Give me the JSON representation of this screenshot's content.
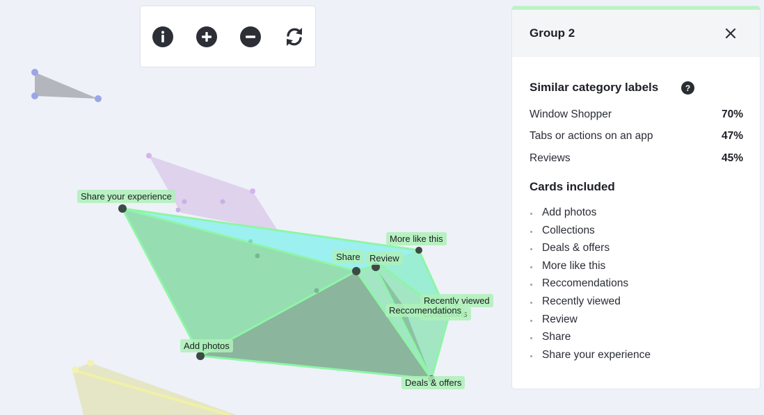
{
  "toolbar": {
    "buttons": [
      {
        "icon": "info-icon",
        "name": "info-button"
      },
      {
        "icon": "plus-icon",
        "name": "zoom-in-button"
      },
      {
        "icon": "minus-icon",
        "name": "zoom-out-button"
      },
      {
        "icon": "refresh-icon",
        "name": "reset-view-button"
      }
    ]
  },
  "panel": {
    "title": "Group 2",
    "accent_color": "#b7f5c1",
    "similar_title": "Similar category labels",
    "similar": [
      {
        "label": "Window Shopper",
        "percent": "70%"
      },
      {
        "label": "Tabs or actions on an app",
        "percent": "47%"
      },
      {
        "label": "Reviews",
        "percent": "45%"
      }
    ],
    "cards_title": "Cards included",
    "cards": [
      "Add photos",
      "Collections",
      "Deals & offers",
      "More like this",
      "Reccomendations",
      "Recently viewed",
      "Review",
      "Share",
      "Share your experience"
    ]
  },
  "scene": {
    "point_labels": {
      "share_experience": "Share your experience",
      "more_like_this": "More like this",
      "share": "Share",
      "review": "Review",
      "recently_viewed": "Recently viewed",
      "reccomendations": "Reccomendations",
      "collections": "Collections",
      "add_photos": "Add photos",
      "deals_offers": "Deals & offers"
    },
    "colors": {
      "group2_fill": "#7fdca0",
      "group2_edge": "#8ff0a8",
      "cyan_fill": "#8ef2f0",
      "purple_fill": "#d8c8ea",
      "gray_fill": "#a6a7ad",
      "yellow_fill": "#e8eab8"
    }
  }
}
